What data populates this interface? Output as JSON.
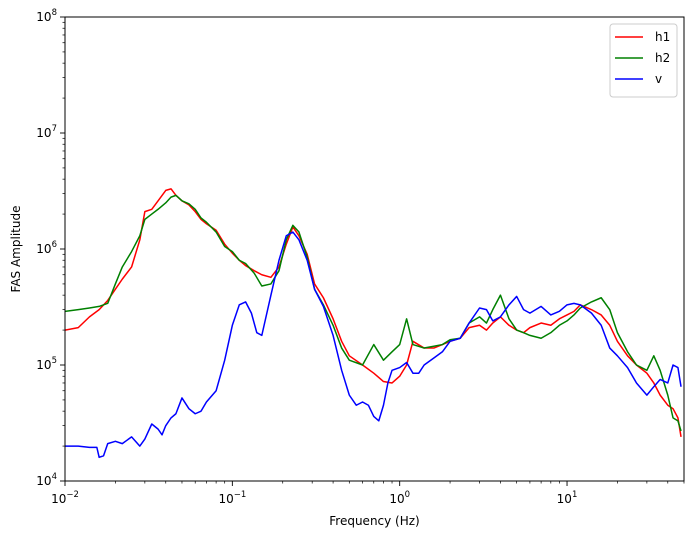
{
  "chart_data": {
    "type": "line",
    "title": "",
    "xlabel": "Frequency (Hz)",
    "ylabel": "FAS Amplitude",
    "xscale": "log",
    "yscale": "log",
    "xlim": [
      0.01,
      50
    ],
    "ylim": [
      10000,
      100000000
    ],
    "grid": false,
    "legend_position": "top-right",
    "x_ticks": [
      {
        "value": 0.01,
        "base": "10",
        "exp": "−2"
      },
      {
        "value": 0.1,
        "base": "10",
        "exp": "−1"
      },
      {
        "value": 1,
        "base": "10",
        "exp": "0"
      },
      {
        "value": 10,
        "base": "10",
        "exp": "1"
      }
    ],
    "y_ticks": [
      {
        "value": 10000,
        "base": "10",
        "exp": "4"
      },
      {
        "value": 100000,
        "base": "10",
        "exp": "5"
      },
      {
        "value": 1000000,
        "base": "10",
        "exp": "6"
      },
      {
        "value": 10000000,
        "base": "10",
        "exp": "7"
      },
      {
        "value": 100000000,
        "base": "10",
        "exp": "8"
      }
    ],
    "series": [
      {
        "name": "h1",
        "color": "#ff0000",
        "x": [
          0.01,
          0.012,
          0.014,
          0.016,
          0.018,
          0.02,
          0.022,
          0.025,
          0.028,
          0.03,
          0.033,
          0.036,
          0.04,
          0.043,
          0.046,
          0.05,
          0.055,
          0.06,
          0.065,
          0.07,
          0.08,
          0.09,
          0.1,
          0.11,
          0.12,
          0.135,
          0.15,
          0.17,
          0.19,
          0.21,
          0.23,
          0.25,
          0.28,
          0.31,
          0.35,
          0.4,
          0.45,
          0.5,
          0.6,
          0.7,
          0.8,
          0.9,
          1.0,
          1.1,
          1.2,
          1.4,
          1.6,
          1.8,
          2.0,
          2.3,
          2.6,
          3.0,
          3.3,
          3.6,
          4.0,
          4.5,
          5.0,
          5.5,
          6.0,
          7.0,
          8.0,
          9.0,
          10.0,
          11.0,
          12.0,
          14.0,
          16.0,
          18.0,
          20.0,
          23.0,
          26.0,
          30.0,
          33.0,
          36.0,
          40.0,
          43.0,
          46.0,
          48.0
        ],
        "values": [
          200000,
          210000,
          260000,
          300000,
          360000,
          450000,
          550000,
          700000,
          1200000,
          2100000,
          2200000,
          2600000,
          3200000,
          3300000,
          2900000,
          2600000,
          2400000,
          2100000,
          1800000,
          1650000,
          1450000,
          1100000,
          920000,
          800000,
          720000,
          650000,
          600000,
          570000,
          700000,
          1100000,
          1550000,
          1300000,
          900000,
          500000,
          380000,
          250000,
          160000,
          120000,
          100000,
          85000,
          72000,
          70000,
          80000,
          100000,
          160000,
          140000,
          140000,
          150000,
          160000,
          170000,
          210000,
          220000,
          200000,
          230000,
          260000,
          220000,
          200000,
          190000,
          210000,
          230000,
          220000,
          250000,
          270000,
          290000,
          330000,
          300000,
          270000,
          220000,
          160000,
          120000,
          100000,
          85000,
          70000,
          55000,
          45000,
          42000,
          35000,
          24000
        ]
      },
      {
        "name": "h2",
        "color": "#008000",
        "x": [
          0.01,
          0.012,
          0.014,
          0.016,
          0.018,
          0.02,
          0.022,
          0.025,
          0.028,
          0.03,
          0.033,
          0.036,
          0.04,
          0.043,
          0.046,
          0.05,
          0.055,
          0.06,
          0.065,
          0.07,
          0.08,
          0.09,
          0.1,
          0.11,
          0.12,
          0.135,
          0.15,
          0.17,
          0.19,
          0.21,
          0.23,
          0.25,
          0.28,
          0.31,
          0.35,
          0.4,
          0.45,
          0.5,
          0.6,
          0.7,
          0.8,
          0.9,
          1.0,
          1.1,
          1.2,
          1.4,
          1.6,
          1.8,
          2.0,
          2.3,
          2.6,
          3.0,
          3.3,
          3.6,
          4.0,
          4.5,
          5.0,
          5.5,
          6.0,
          7.0,
          8.0,
          9.0,
          10.0,
          11.0,
          12.0,
          14.0,
          16.0,
          18.0,
          20.0,
          23.0,
          26.0,
          30.0,
          33.0,
          36.0,
          40.0,
          43.0,
          46.0,
          48.0
        ],
        "values": [
          290000,
          300000,
          310000,
          320000,
          340000,
          500000,
          700000,
          950000,
          1300000,
          1800000,
          2000000,
          2200000,
          2500000,
          2800000,
          2900000,
          2600000,
          2450000,
          2200000,
          1850000,
          1700000,
          1400000,
          1050000,
          950000,
          800000,
          750000,
          620000,
          480000,
          500000,
          650000,
          1200000,
          1600000,
          1400000,
          850000,
          450000,
          330000,
          220000,
          140000,
          110000,
          100000,
          150000,
          110000,
          130000,
          150000,
          250000,
          150000,
          140000,
          145000,
          150000,
          165000,
          170000,
          230000,
          260000,
          230000,
          300000,
          400000,
          250000,
          200000,
          190000,
          180000,
          170000,
          190000,
          220000,
          240000,
          270000,
          310000,
          350000,
          380000,
          300000,
          190000,
          130000,
          100000,
          90000,
          120000,
          90000,
          55000,
          35000,
          33000,
          27000
        ]
      },
      {
        "name": "v",
        "color": "#0000ff",
        "x": [
          0.01,
          0.012,
          0.014,
          0.0155,
          0.016,
          0.017,
          0.018,
          0.02,
          0.022,
          0.025,
          0.028,
          0.03,
          0.033,
          0.036,
          0.038,
          0.04,
          0.043,
          0.046,
          0.05,
          0.055,
          0.06,
          0.065,
          0.07,
          0.08,
          0.09,
          0.1,
          0.11,
          0.12,
          0.13,
          0.14,
          0.15,
          0.17,
          0.19,
          0.21,
          0.23,
          0.25,
          0.28,
          0.31,
          0.35,
          0.4,
          0.45,
          0.5,
          0.55,
          0.6,
          0.65,
          0.7,
          0.75,
          0.8,
          0.85,
          0.9,
          1.0,
          1.1,
          1.2,
          1.3,
          1.4,
          1.6,
          1.8,
          2.0,
          2.3,
          2.6,
          3.0,
          3.3,
          3.6,
          4.0,
          4.5,
          5.0,
          5.5,
          6.0,
          7.0,
          8.0,
          9.0,
          10.0,
          11.0,
          12.0,
          14.0,
          16.0,
          18.0,
          20.0,
          23.0,
          26.0,
          30.0,
          33.0,
          36.0,
          40.0,
          43.0,
          46.0,
          48.0
        ],
        "values": [
          20000,
          20000,
          19500,
          19500,
          16000,
          16500,
          21000,
          22000,
          21000,
          24000,
          20000,
          23000,
          31000,
          28000,
          25000,
          30000,
          35000,
          38000,
          52000,
          42000,
          38000,
          40000,
          48000,
          60000,
          110000,
          220000,
          330000,
          350000,
          280000,
          190000,
          180000,
          400000,
          800000,
          1300000,
          1400000,
          1200000,
          800000,
          450000,
          320000,
          180000,
          90000,
          55000,
          45000,
          48000,
          45000,
          36000,
          33000,
          45000,
          70000,
          90000,
          95000,
          105000,
          85000,
          85000,
          100000,
          115000,
          130000,
          160000,
          170000,
          230000,
          310000,
          300000,
          240000,
          260000,
          330000,
          390000,
          300000,
          280000,
          320000,
          270000,
          290000,
          330000,
          340000,
          330000,
          280000,
          220000,
          140000,
          120000,
          95000,
          70000,
          55000,
          65000,
          75000,
          70000,
          100000,
          95000,
          65000
        ]
      }
    ]
  }
}
